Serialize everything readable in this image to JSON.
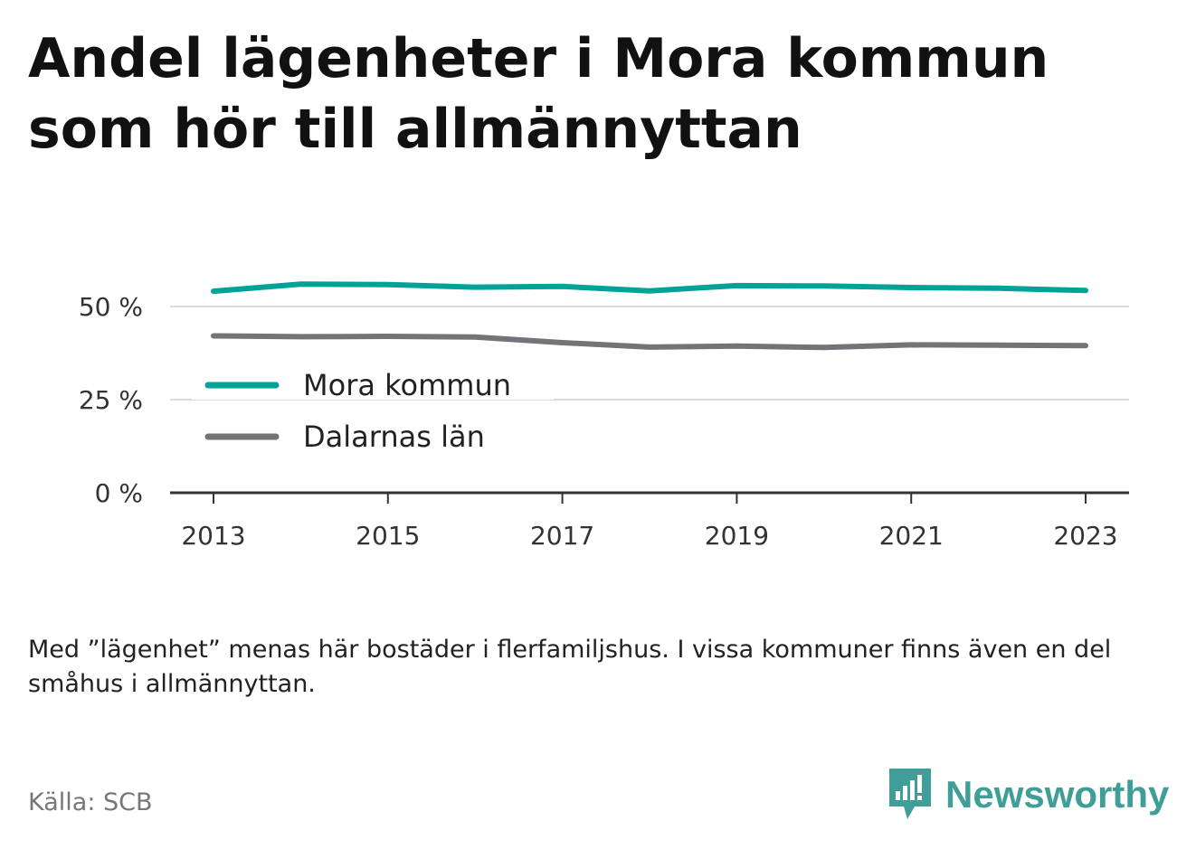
{
  "title": "Andel lägenheter i Mora kommun som hör till allmännyttan",
  "note": "Med ”lägenhet” menas här bostäder i flerfamiljshus. I vissa kommuner finns även en del småhus i allmännyttan.",
  "source": "Källa: SCB",
  "brand": {
    "name": "Newsworthy",
    "color": "#3f9f98",
    "icon": "newsworthy-logo-icon"
  },
  "chart_data": {
    "type": "line",
    "x": [
      2013,
      2014,
      2015,
      2016,
      2017,
      2018,
      2019,
      2020,
      2021,
      2022,
      2023
    ],
    "x_ticks": [
      "2013",
      "2015",
      "2017",
      "2019",
      "2021",
      "2023"
    ],
    "y_ticks": [
      {
        "value": 0,
        "label": "0 %"
      },
      {
        "value": 25,
        "label": "25 %"
      },
      {
        "value": 50,
        "label": "50 %"
      }
    ],
    "ylim": [
      0,
      60
    ],
    "grid": true,
    "legend_position": "bottom-left",
    "series": [
      {
        "name": "Mora kommun",
        "color": "#00a396",
        "values": [
          54.1,
          56.0,
          55.9,
          55.2,
          55.4,
          54.2,
          55.6,
          55.5,
          55.1,
          54.9,
          54.3
        ]
      },
      {
        "name": "Dalarnas län",
        "color": "#737378",
        "values": [
          42.1,
          41.9,
          42.0,
          41.8,
          40.3,
          39.1,
          39.4,
          39.0,
          39.7,
          39.6,
          39.5
        ]
      }
    ]
  }
}
